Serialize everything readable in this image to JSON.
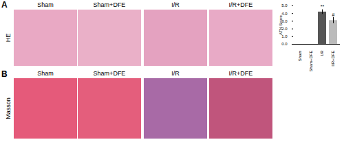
{
  "figure": {
    "panels": [
      {
        "label": "A",
        "row_label": "HE",
        "columns": [
          "Sham",
          "Sham+DFE",
          "I/R",
          "I/R+DFE"
        ]
      },
      {
        "label": "B",
        "row_label": "Masson",
        "columns": [
          "Sham",
          "Sham+DFE",
          "I/R",
          "I/R+DFE"
        ]
      }
    ]
  },
  "chart_data": {
    "type": "bar",
    "categories": [
      "Sham",
      "Sham+DFE",
      "I/R",
      "I/R+DFE"
    ],
    "values": [
      0,
      0,
      4.2,
      3.1
    ],
    "errors": [
      0,
      0,
      0.3,
      0.4
    ],
    "colors": [
      "#555555",
      "#555555",
      "#555555",
      "#bbbbbb"
    ],
    "y_label": "ATN Score",
    "ylim": [
      0,
      5
    ],
    "yticks": [
      0,
      1,
      2,
      3,
      4,
      5
    ],
    "annotations": [
      {
        "category": "I/R",
        "text": "**"
      },
      {
        "category": "I/R+DFE",
        "text": "#"
      }
    ]
  }
}
